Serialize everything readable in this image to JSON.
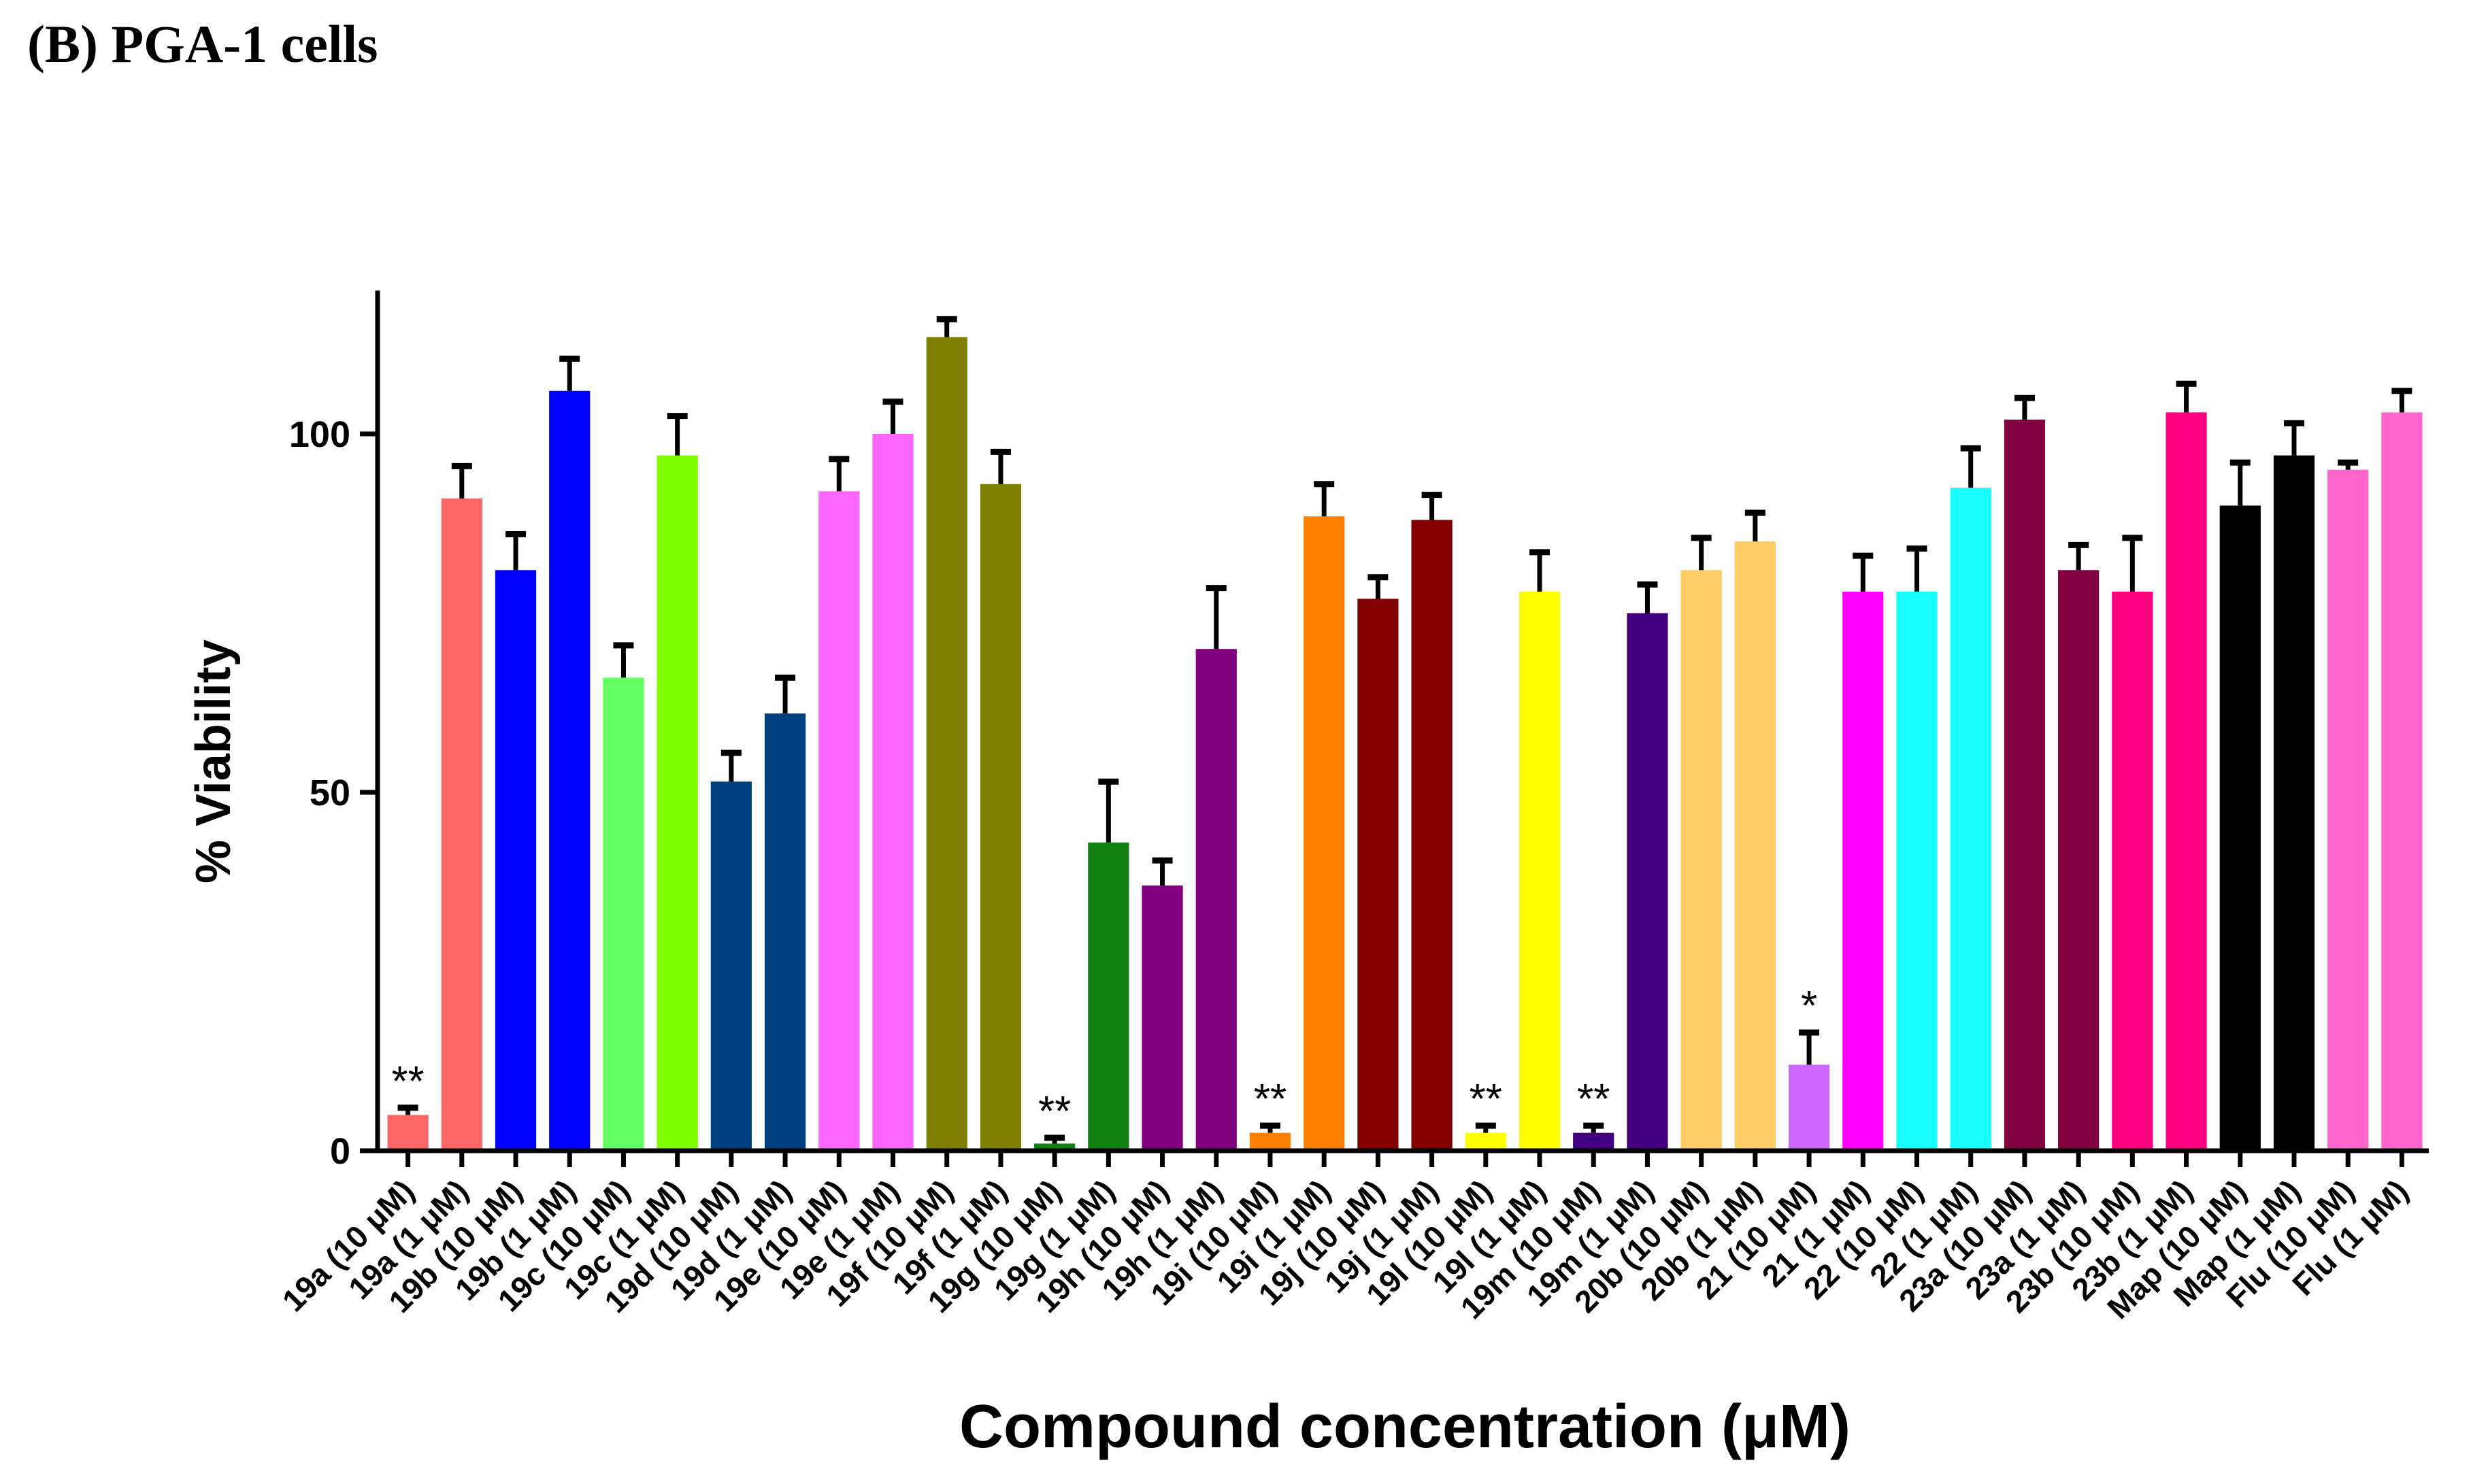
{
  "panel_title": "(B) PGA-1 cells",
  "chart_data": {
    "type": "bar",
    "title": "(B) PGA-1 cells",
    "xlabel": "Compound concentration (μM)",
    "ylabel": "% Viability",
    "ylim": [
      0,
      120
    ],
    "yticks": [
      0,
      50,
      100
    ],
    "categories": [
      "19a (10 μM)",
      "19a (1 μM)",
      "19b (10 μM)",
      "19b (1 μM)",
      "19c (10 μM)",
      "19c (1 μM)",
      "19d (10 μM)",
      "19d (1 μM)",
      "19e (10 μM)",
      "19e (1 μM)",
      "19f (10 μM)",
      "19f (1 μM)",
      "19g (10 μM)",
      "19g (1 μM)",
      "19h (10 μM)",
      "19h (1 μM)",
      "19i (10 μM)",
      "19i (1 μM)",
      "19j (10 μM)",
      "19j (1 μM)",
      "19l (10 μM)",
      "19l (1 μM)",
      "19m (10 μM)",
      "19m (1 μM)",
      "20b (10 μM)",
      "20b (1 μM)",
      "21 (10 μM)",
      "21 (1 μM)",
      "22 (10 μM)",
      "22 (1 μM)",
      "23a (10 μM)",
      "23a (1 μM)",
      "23b (10 μM)",
      "23b (1 μM)",
      "Map (10 μM)",
      "Map (1 μM)",
      "Flu (10 μM)",
      "Flu (1 μM)"
    ],
    "values": [
      5,
      91,
      81,
      106,
      66,
      97,
      51.5,
      61,
      92,
      100,
      113.5,
      93,
      1,
      43,
      37,
      70,
      2.5,
      88.5,
      77,
      88,
      2.5,
      78,
      2.5,
      75,
      81,
      85,
      12,
      78,
      78,
      92.5,
      102,
      81,
      78,
      103,
      90,
      97,
      95,
      103
    ],
    "errors": [
      1,
      4.5,
      5,
      4.5,
      4.5,
      5.5,
      4,
      5,
      4.5,
      4.5,
      2.5,
      4.5,
      0.8,
      8.5,
      3.5,
      8.5,
      1,
      4.5,
      3,
      3.5,
      1,
      5.5,
      1,
      4,
      4.5,
      4,
      4.5,
      5,
      6,
      5.5,
      3,
      3.5,
      7.5,
      4,
      6,
      4.5,
      1,
      3
    ],
    "colors": [
      "#ff6666",
      "#ff6666",
      "#0000ff",
      "#0000ff",
      "#66ff66",
      "#80ff00",
      "#004080",
      "#004080",
      "#ff66ff",
      "#ff66ff",
      "#808000",
      "#808000",
      "#108010",
      "#108010",
      "#800080",
      "#800080",
      "#ff8000",
      "#ff8000",
      "#800000",
      "#800000",
      "#ffff00",
      "#ffff00",
      "#400080",
      "#400080",
      "#ffcc66",
      "#ffcc66",
      "#cc66ff",
      "#ff00ff",
      "#1affff",
      "#1affff",
      "#800040",
      "#800040",
      "#ff0080",
      "#ff0080",
      "#000000",
      "#000000",
      "#ff66cc",
      "#ff66cc"
    ],
    "significance": [
      "**",
      "",
      "",
      "",
      "",
      "",
      "",
      "",
      "",
      "",
      "",
      "",
      "**",
      "",
      "",
      "",
      "**",
      "",
      "",
      "",
      "**",
      "",
      "**",
      "",
      "",
      "",
      "*",
      "",
      "",
      "",
      "",
      "",
      "",
      "",
      "",
      "",
      "",
      ""
    ]
  }
}
